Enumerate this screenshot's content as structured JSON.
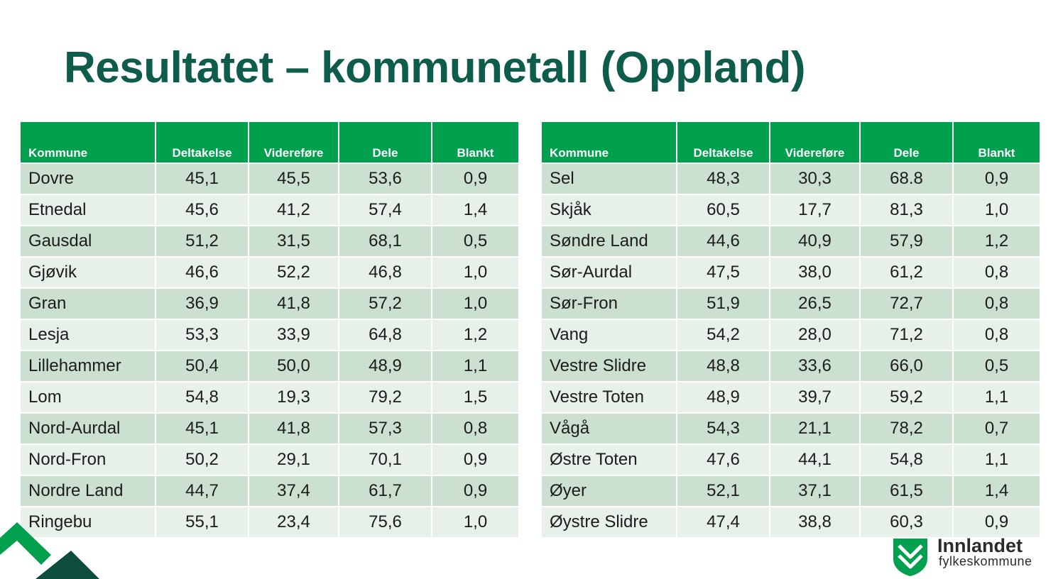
{
  "title": "Resultatet – kommunetall (Oppland)",
  "columns": [
    "Kommune",
    "Deltakelse",
    "Videreføre",
    "Dele",
    "Blankt"
  ],
  "tables": [
    {
      "rows": [
        [
          "Dovre",
          "45,1",
          "45,5",
          "53,6",
          "0,9"
        ],
        [
          "Etnedal",
          "45,6",
          "41,2",
          "57,4",
          "1,4"
        ],
        [
          "Gausdal",
          "51,2",
          "31,5",
          "68,1",
          "0,5"
        ],
        [
          "Gjøvik",
          "46,6",
          "52,2",
          "46,8",
          "1,0"
        ],
        [
          "Gran",
          "36,9",
          "41,8",
          "57,2",
          "1,0"
        ],
        [
          "Lesja",
          "53,3",
          "33,9",
          "64,8",
          "1,2"
        ],
        [
          "Lillehammer",
          "50,4",
          "50,0",
          "48,9",
          "1,1"
        ],
        [
          "Lom",
          "54,8",
          "19,3",
          "79,2",
          "1,5"
        ],
        [
          "Nord-Aurdal",
          "45,1",
          "41,8",
          "57,3",
          "0,8"
        ],
        [
          "Nord-Fron",
          "50,2",
          "29,1",
          "70,1",
          "0,9"
        ],
        [
          "Nordre Land",
          "44,7",
          "37,4",
          "61,7",
          "0,9"
        ],
        [
          "Ringebu",
          "55,1",
          "23,4",
          "75,6",
          "1,0"
        ]
      ]
    },
    {
      "rows": [
        [
          "Sel",
          "48,3",
          "30,3",
          "68.8",
          "0,9"
        ],
        [
          "Skjåk",
          "60,5",
          "17,7",
          "81,3",
          "1,0"
        ],
        [
          "Søndre Land",
          "44,6",
          "40,9",
          "57,9",
          "1,2"
        ],
        [
          "Sør-Aurdal",
          "47,5",
          "38,0",
          "61,2",
          "0,8"
        ],
        [
          "Sør-Fron",
          "51,9",
          "26,5",
          "72,7",
          "0,8"
        ],
        [
          "Vang",
          "54,2",
          "28,0",
          "71,2",
          "0,8"
        ],
        [
          "Vestre Slidre",
          "48,8",
          "33,6",
          "66,0",
          "0,5"
        ],
        [
          "Vestre Toten",
          "48,9",
          "39,7",
          "59,2",
          "1,1"
        ],
        [
          "Vågå",
          "54,3",
          "21,1",
          "78,2",
          "0,7"
        ],
        [
          "Østre Toten",
          "47,6",
          "44,1",
          "54,8",
          "1,1"
        ],
        [
          "Øyer",
          "52,1",
          "37,1",
          "61,5",
          "1,4"
        ],
        [
          "Øystre Slidre",
          "47,4",
          "38,8",
          "60,3",
          "0,9"
        ]
      ]
    }
  ],
  "logo": {
    "name": "Innlandet",
    "subtitle": "fylkeskommune",
    "icon": "innlandet-shield-icon"
  },
  "decoration": {
    "icon": "mountain-chevron-icon"
  },
  "colors": {
    "title": "#0d5c4c",
    "header_bg": "#00a04f",
    "row_odd": "#cce0d1",
    "row_even": "#e7f1ea",
    "logo_green": "#00a04f"
  }
}
